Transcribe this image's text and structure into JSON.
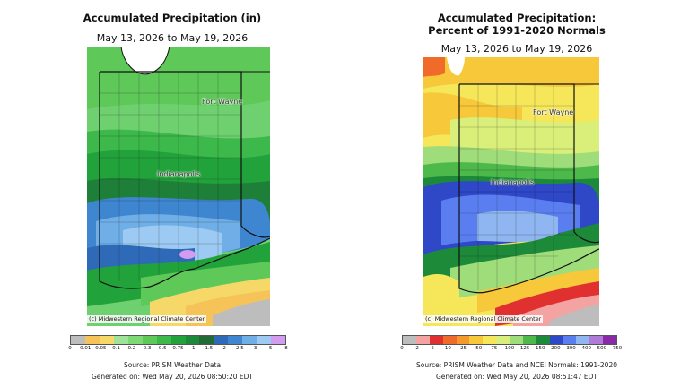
{
  "left_panel": {
    "title": "Accumulated Precipitation (in)",
    "date_range": "May 13, 2026 to May 19, 2026",
    "cities": [
      "Fort Wayne",
      "Indianapolis"
    ],
    "credit": "(c) Midwestern Regional Climate Center",
    "legend": {
      "ticks": [
        "0",
        "0.01",
        "0.05",
        "0.1",
        "0.2",
        "0.3",
        "0.5",
        "0.75",
        "1",
        "1.5",
        "2",
        "2.5",
        "3",
        "5",
        "8"
      ],
      "colors": [
        "#bdbdbd",
        "#f6c358",
        "#f6d868",
        "#9fe39a",
        "#7fd876",
        "#5ec859",
        "#3db84a",
        "#22a23a",
        "#1d8a3a",
        "#226b35",
        "#2e6ab8",
        "#3f86d0",
        "#6faee6",
        "#9ccaf2",
        "#d39cf0"
      ]
    },
    "source": "Source: PRISM Weather Data",
    "generated": "Generated on: Wed May 20, 2026 08:50:20 EDT"
  },
  "right_panel": {
    "title_line1": "Accumulated Precipitation:",
    "title_line2": "Percent of 1991-2020 Normals",
    "date_range": "May 13, 2026 to May 19, 2026",
    "cities": [
      "Fort Wayne",
      "Indianapolis"
    ],
    "credit": "(c) Midwestern Regional Climate Center",
    "legend": {
      "ticks": [
        "0",
        "2",
        "5",
        "10",
        "25",
        "50",
        "75",
        "100",
        "125",
        "150",
        "200",
        "300",
        "400",
        "500",
        "750"
      ],
      "colors": [
        "#bdbdbd",
        "#f4a3a3",
        "#e03030",
        "#f06a2a",
        "#f59a2a",
        "#f6c83a",
        "#f6e65a",
        "#d9ef7a",
        "#9fdc7a",
        "#4cb94a",
        "#1d8a3a",
        "#2e48c8",
        "#5a7ef0",
        "#8fb6f0",
        "#b07ad8",
        "#8a2aa8"
      ]
    },
    "source": "Source: PRISM Weather Data and NCEI Normals: 1991-2020",
    "generated": "Generated on: Wed May 20, 2026 08:51:47 EDT"
  }
}
